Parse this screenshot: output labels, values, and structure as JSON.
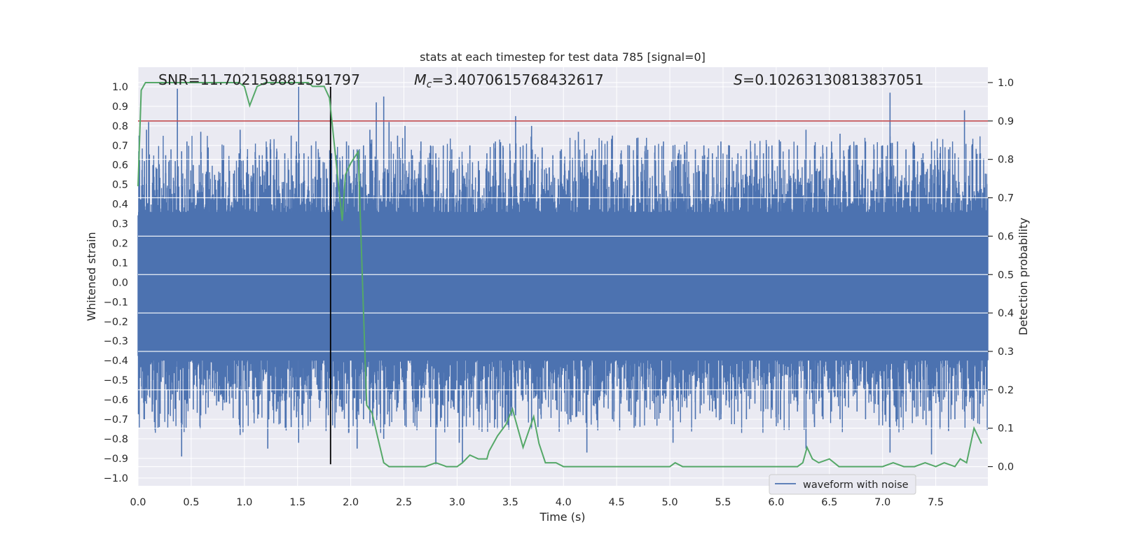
{
  "chart_data": {
    "type": "line",
    "title": "stats at each timestep for test data 785 [signal=0]",
    "xlabel": "Time (s)",
    "ylabel_left": "Whitened strain",
    "ylabel_right": "Detection probability",
    "xlim": [
      0,
      7.99
    ],
    "ylim_left": [
      -1.04,
      1.1
    ],
    "ylim_right": [
      -0.05,
      1.04
    ],
    "x_ticks": [
      0.0,
      0.5,
      1.0,
      1.5,
      2.0,
      2.5,
      3.0,
      3.5,
      4.0,
      4.5,
      5.0,
      5.5,
      6.0,
      6.5,
      7.0,
      7.5
    ],
    "x_tick_labels": [
      "0.0",
      "0.5",
      "1.0",
      "1.5",
      "2.0",
      "2.5",
      "3.0",
      "3.5",
      "4.0",
      "4.5",
      "5.0",
      "5.5",
      "6.0",
      "6.5",
      "7.0",
      "7.5"
    ],
    "y_left_ticks": [
      1.0,
      0.9,
      0.8,
      0.7,
      0.6,
      0.5,
      0.4,
      0.3,
      0.2,
      0.1,
      0.0,
      -0.1,
      -0.2,
      -0.3,
      -0.4,
      -0.5,
      -0.6,
      -0.7,
      -0.8,
      -0.9,
      -1.0
    ],
    "y_left_tick_labels": [
      "1.0",
      "0.9",
      "0.8",
      "0.7",
      "0.6",
      "0.5",
      "0.4",
      "0.3",
      "0.2",
      "0.1",
      "0.0",
      "−0.1",
      "−0.2",
      "−0.3",
      "−0.4",
      "−0.5",
      "−0.6",
      "−0.7",
      "−0.8",
      "−0.9",
      "−1.0"
    ],
    "y_right_ticks": [
      1.0,
      0.9,
      0.8,
      0.7,
      0.6,
      0.5,
      0.4,
      0.3,
      0.2,
      0.1,
      0.0
    ],
    "y_right_tick_labels": [
      "1.0",
      "0.9",
      "0.8",
      "0.7",
      "0.6",
      "0.5",
      "0.4",
      "0.3",
      "0.2",
      "0.1",
      "0.0"
    ],
    "grid": true,
    "legend_position": "lower-right",
    "annotations": {
      "snr": "SNR=11.702159881591797",
      "mc_symbol": "M",
      "mc_sub": "c",
      "mc_value": "=3.4070615768432617",
      "s_symbol": "S",
      "s_value": "=0.10263130813837051"
    },
    "threshold_line": {
      "value": 0.9,
      "axis": "right",
      "color": "#c44e52"
    },
    "marker_line": {
      "x": 1.81,
      "y_range": [
        -0.93,
        1.0
      ],
      "color": "#000000"
    },
    "series": [
      {
        "name": "waveform with noise",
        "axis": "left",
        "color": "#4c72b0",
        "style": "dense noise trace",
        "envelope_peaks": [
          [
            0.01,
            0.75,
            -0.6
          ],
          [
            0.06,
            0.62,
            -0.7
          ],
          [
            0.08,
            0.78,
            -0.62
          ],
          [
            0.1,
            0.82,
            -0.55
          ],
          [
            0.14,
            0.6,
            -0.5
          ],
          [
            0.2,
            0.58,
            -0.74
          ],
          [
            0.26,
            0.65,
            -0.52
          ],
          [
            0.31,
            0.68,
            -0.6
          ],
          [
            0.35,
            0.62,
            -0.58
          ],
          [
            0.37,
            0.99,
            -0.56
          ],
          [
            0.41,
            0.67,
            -0.89
          ],
          [
            0.46,
            0.72,
            -0.62
          ],
          [
            0.52,
            0.6,
            -0.65
          ],
          [
            0.59,
            0.77,
            -0.68
          ],
          [
            0.66,
            0.69,
            -0.64
          ],
          [
            0.72,
            0.55,
            -0.58
          ],
          [
            0.8,
            0.63,
            -0.6
          ],
          [
            0.86,
            0.57,
            -0.62
          ],
          [
            0.95,
            0.66,
            -0.7
          ],
          [
            0.96,
            0.78,
            -0.78
          ],
          [
            1.02,
            0.56,
            -0.63
          ],
          [
            1.08,
            0.6,
            -0.6
          ],
          [
            1.14,
            0.65,
            -0.58
          ],
          [
            1.22,
            0.6,
            -0.85
          ],
          [
            1.3,
            0.64,
            -0.66
          ],
          [
            1.38,
            0.66,
            -0.6
          ],
          [
            1.44,
            0.75,
            -0.74
          ],
          [
            1.49,
            0.72,
            -0.69
          ],
          [
            1.51,
            1.0,
            -0.82
          ],
          [
            1.56,
            0.66,
            -0.62
          ],
          [
            1.63,
            0.7,
            -0.58
          ],
          [
            1.7,
            0.62,
            -0.6
          ],
          [
            1.77,
            0.58,
            -0.65
          ],
          [
            1.82,
            0.66,
            -0.57
          ],
          [
            1.9,
            0.62,
            -0.6
          ],
          [
            1.96,
            0.72,
            -0.62
          ],
          [
            1.98,
            0.7,
            -0.77
          ],
          [
            2.06,
            0.68,
            -0.85
          ],
          [
            2.12,
            0.7,
            -0.7
          ],
          [
            2.18,
            0.78,
            -0.72
          ],
          [
            2.24,
            0.92,
            -0.6
          ],
          [
            2.31,
            0.95,
            -0.8
          ],
          [
            2.36,
            0.82,
            -0.66
          ],
          [
            2.44,
            0.75,
            -0.64
          ],
          [
            2.51,
            0.8,
            -0.62
          ],
          [
            2.58,
            0.65,
            -0.6
          ],
          [
            2.66,
            0.72,
            -0.66
          ],
          [
            2.75,
            0.7,
            -0.62
          ],
          [
            2.8,
            0.66,
            -0.93
          ],
          [
            2.87,
            0.7,
            -0.63
          ],
          [
            2.95,
            0.68,
            -0.6
          ],
          [
            3.02,
            0.64,
            -0.82
          ],
          [
            3.05,
            0.6,
            -0.92
          ],
          [
            3.12,
            0.7,
            -0.69
          ],
          [
            3.2,
            0.62,
            -0.66
          ],
          [
            3.28,
            0.66,
            -0.62
          ],
          [
            3.36,
            0.72,
            -0.7
          ],
          [
            3.43,
            0.6,
            -0.64
          ],
          [
            3.5,
            0.63,
            -0.66
          ],
          [
            3.55,
            0.85,
            -0.68
          ],
          [
            3.62,
            0.7,
            -0.6
          ],
          [
            3.7,
            0.8,
            -0.75
          ],
          [
            3.76,
            0.64,
            -0.74
          ],
          [
            3.8,
            0.69,
            -0.62
          ],
          [
            3.9,
            0.65,
            -0.6
          ],
          [
            3.98,
            0.68,
            -0.66
          ],
          [
            4.06,
            0.62,
            -0.7
          ],
          [
            4.14,
            0.77,
            -0.66
          ],
          [
            4.22,
            0.66,
            -0.87
          ],
          [
            4.3,
            0.68,
            -0.62
          ],
          [
            4.38,
            0.6,
            -0.64
          ],
          [
            4.46,
            0.75,
            -0.7
          ],
          [
            4.54,
            0.66,
            -0.62
          ],
          [
            4.62,
            0.7,
            -0.66
          ],
          [
            4.7,
            0.74,
            -0.6
          ],
          [
            4.78,
            0.66,
            -0.64
          ],
          [
            4.86,
            0.7,
            -0.7
          ],
          [
            4.94,
            0.72,
            -0.62
          ],
          [
            5.03,
            0.7,
            -0.82
          ],
          [
            5.08,
            0.66,
            -0.66
          ],
          [
            5.16,
            0.72,
            -0.64
          ],
          [
            5.24,
            0.68,
            -0.7
          ],
          [
            5.32,
            0.7,
            -0.62
          ],
          [
            5.4,
            0.66,
            -0.66
          ],
          [
            5.48,
            0.72,
            -0.7
          ],
          [
            5.56,
            0.7,
            -0.64
          ],
          [
            5.64,
            0.66,
            -0.66
          ],
          [
            5.72,
            0.68,
            -0.7
          ],
          [
            5.8,
            0.71,
            -0.62
          ],
          [
            5.88,
            0.66,
            -0.66
          ],
          [
            5.96,
            0.7,
            -0.64
          ],
          [
            6.04,
            0.72,
            -0.7
          ],
          [
            6.12,
            0.68,
            -0.62
          ],
          [
            6.2,
            0.7,
            -0.66
          ],
          [
            6.28,
            0.78,
            -0.85
          ],
          [
            6.36,
            0.7,
            -0.74
          ],
          [
            6.44,
            0.66,
            -0.7
          ],
          [
            6.52,
            0.72,
            -0.66
          ],
          [
            6.6,
            0.76,
            -0.7
          ],
          [
            6.68,
            0.68,
            -0.64
          ],
          [
            6.76,
            0.7,
            -0.66
          ],
          [
            6.84,
            0.72,
            -0.7
          ],
          [
            6.92,
            0.68,
            -0.62
          ],
          [
            7.0,
            0.7,
            -0.66
          ],
          [
            7.07,
            0.97,
            -0.87
          ],
          [
            7.14,
            0.72,
            -0.7
          ],
          [
            7.22,
            0.68,
            -0.66
          ],
          [
            7.3,
            0.7,
            -0.64
          ],
          [
            7.38,
            0.66,
            -0.7
          ],
          [
            7.46,
            0.72,
            -0.88
          ],
          [
            7.54,
            0.66,
            -0.75
          ],
          [
            7.62,
            0.68,
            -0.76
          ],
          [
            7.68,
            0.66,
            -0.7
          ],
          [
            7.77,
            0.88,
            -0.66
          ],
          [
            7.84,
            0.7,
            -0.7
          ],
          [
            7.92,
            0.66,
            -0.62
          ]
        ]
      },
      {
        "name": "",
        "axis": "right",
        "color": "#55a868",
        "x": [
          0.0,
          0.03,
          0.07,
          0.12,
          0.2,
          0.4,
          0.8,
          0.95,
          1.0,
          1.05,
          1.12,
          1.2,
          1.4,
          1.6,
          1.64,
          1.69,
          1.75,
          1.8,
          1.86,
          1.92,
          1.95,
          2.0,
          2.07,
          2.12,
          2.15,
          2.2,
          2.25,
          2.31,
          2.36,
          2.42,
          2.5,
          2.7,
          2.8,
          2.9,
          3.0,
          3.05,
          3.12,
          3.2,
          3.28,
          3.3,
          3.38,
          3.46,
          3.52,
          3.55,
          3.62,
          3.67,
          3.72,
          3.77,
          3.83,
          3.93,
          4.0,
          4.1,
          4.2,
          4.3,
          4.5,
          4.8,
          5.0,
          5.05,
          5.12,
          5.19,
          5.25,
          5.5,
          5.9,
          6.2,
          6.25,
          6.29,
          6.34,
          6.4,
          6.5,
          6.59,
          6.65,
          6.74,
          6.9,
          7.0,
          7.1,
          7.2,
          7.3,
          7.4,
          7.5,
          7.58,
          7.68,
          7.73,
          7.79,
          7.86,
          7.93
        ],
        "y": [
          0.73,
          0.98,
          1.0,
          1.0,
          1.0,
          1.0,
          1.0,
          1.0,
          0.99,
          0.94,
          0.99,
          1.0,
          1.0,
          1.0,
          0.99,
          0.99,
          0.99,
          0.96,
          0.8,
          0.64,
          0.76,
          0.79,
          0.82,
          0.4,
          0.16,
          0.14,
          0.08,
          0.01,
          0.0,
          0.0,
          0.0,
          0.0,
          0.01,
          0.0,
          0.0,
          0.01,
          0.03,
          0.02,
          0.02,
          0.04,
          0.08,
          0.11,
          0.15,
          0.12,
          0.05,
          0.09,
          0.13,
          0.06,
          0.01,
          0.01,
          0.0,
          0.0,
          0.0,
          0.0,
          0.0,
          0.0,
          0.0,
          0.01,
          0.0,
          0.0,
          0.0,
          0.0,
          0.0,
          0.0,
          0.01,
          0.05,
          0.02,
          0.01,
          0.02,
          0.0,
          0.0,
          0.0,
          0.0,
          0.0,
          0.01,
          0.0,
          0.0,
          0.01,
          0.0,
          0.01,
          0.0,
          0.02,
          0.01,
          0.1,
          0.06
        ]
      }
    ]
  }
}
